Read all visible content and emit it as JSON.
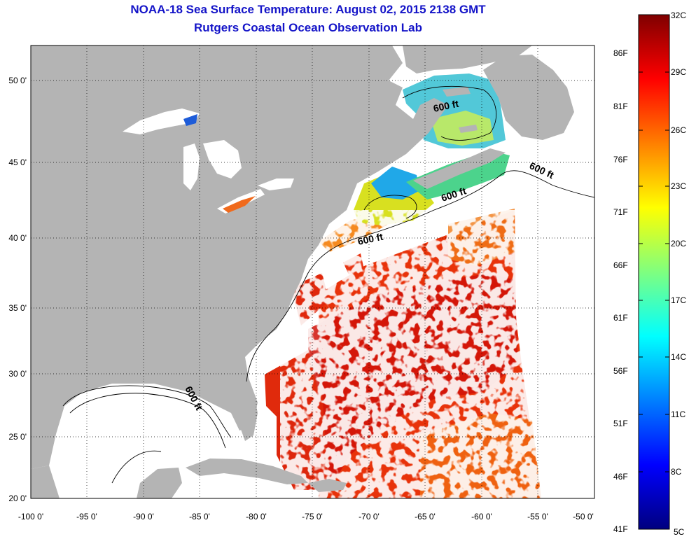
{
  "map": {
    "title": "NOAA-18 Sea Surface Temperature:  August 02, 2015 2138 GMT",
    "subtitle": "Rutgers Coastal Ocean Observation Lab",
    "lat_labels": [
      "50 0'",
      "45 0'",
      "40 0'",
      "35 0'",
      "30 0'",
      "25 0'",
      "20 0'"
    ],
    "lon_labels": [
      "-100 0'",
      "-95 0'",
      "-90 0'",
      "-85 0'",
      "-80 0'",
      "-75 0'",
      "-70 0'",
      "-65 0'",
      "-60 0'",
      "-55 0'",
      "-50 0'"
    ],
    "contour_label": "600 ft",
    "colors": {
      "land": "#b4b4b4",
      "no_data": "#ffffff",
      "title": "#1414c8"
    }
  },
  "colorbar": {
    "celsius_labels": [
      "32C",
      "29C",
      "26C",
      "23C",
      "20C",
      "17C",
      "14C",
      "11C",
      "8C",
      "5C"
    ],
    "fahrenheit_labels": [
      "86F",
      "81F",
      "76F",
      "71F",
      "66F",
      "61F",
      "56F",
      "51F",
      "46F",
      "41F"
    ],
    "gradient": [
      "#00007f",
      "#0000ff",
      "#007fff",
      "#00ffff",
      "#7fff7f",
      "#ffff00",
      "#ff7f00",
      "#ff0000",
      "#7f0000"
    ]
  }
}
